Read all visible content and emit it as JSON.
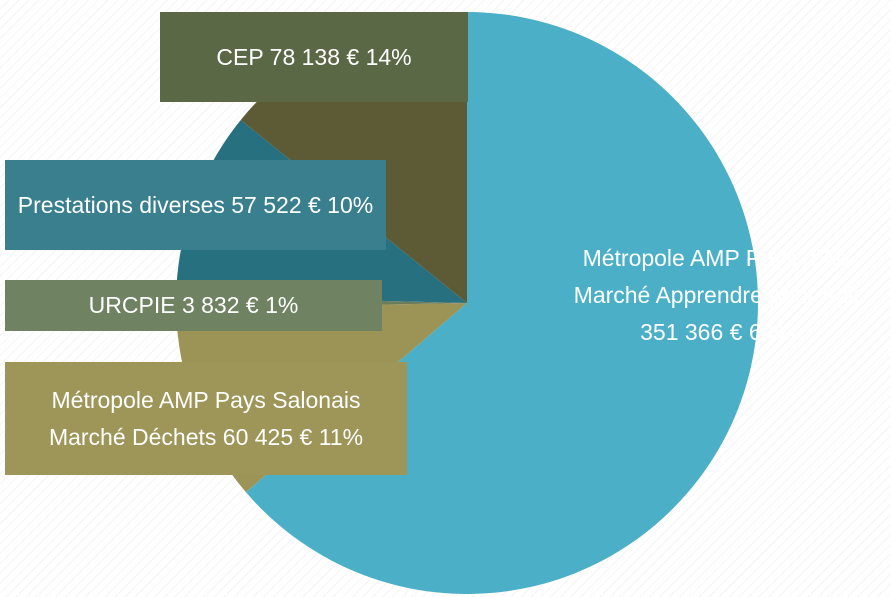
{
  "chart_data": {
    "type": "pie",
    "categories": [
      "Métropole AMP Pays d'Aix Marché Apprendre pour Agir",
      "Métropole AMP Pays Salonais Marché Déchets",
      "URCPIE",
      "Prestations diverses",
      "CEP"
    ],
    "values": [
      351366,
      60425,
      3832,
      57522,
      78138
    ],
    "value_labels": [
      "351 366 € 64%",
      "60 425 € 11%",
      "3 832 € 1%",
      "57 522 € 10%",
      "78 138 € 14%"
    ],
    "colors": [
      "#4bb0c7",
      "#9c9456",
      "#6c7d5e",
      "#26707f",
      "#5d5b36"
    ]
  }
}
